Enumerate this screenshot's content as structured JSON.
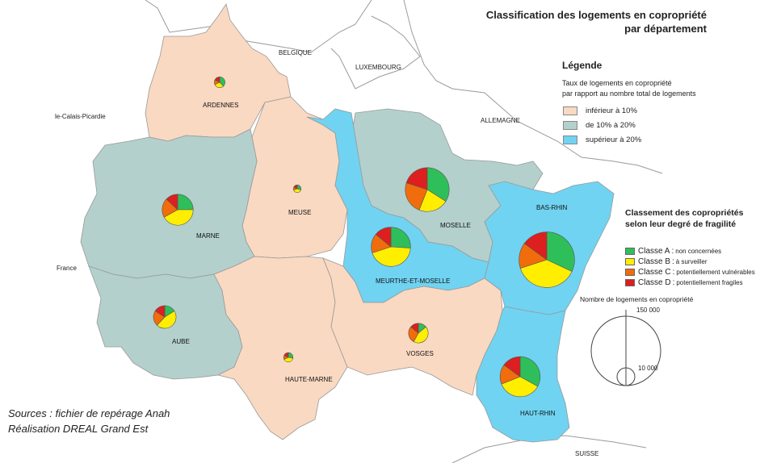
{
  "title": {
    "line1": "Classification des logements en copropriété",
    "line2": "par département"
  },
  "legend": {
    "title": "Légende",
    "subtitle_line1": "Taux de logements en copropriété",
    "subtitle_line2": "par rapport au nombre total de logements",
    "classes": [
      {
        "label": "inférieur à 10%",
        "color": "#f9d9c2"
      },
      {
        "label": "de 10% à 20%",
        "color": "#b3d0cc"
      },
      {
        "label": "supérieur à 20%",
        "color": "#70d3f1"
      }
    ]
  },
  "fragility": {
    "title_line1": "Classement des copropriétés",
    "title_line2": "selon leur degré de fragilité",
    "items": [
      {
        "cls": "Classe A",
        "desc": "non concernées",
        "color": "#2fbf5a"
      },
      {
        "cls": "Classe B",
        "desc": "à surveiller",
        "color": "#ffee00"
      },
      {
        "cls": "Classe C",
        "desc": "potentiellement vulnérables",
        "color": "#f06c0c"
      },
      {
        "cls": "Classe D",
        "desc": "potentiellement fragiles",
        "color": "#dd1f1f"
      }
    ]
  },
  "size_legend": {
    "title": "Nombre de logements en copropriété",
    "large": "150 000",
    "small": "10 000"
  },
  "neighbors": {
    "belgique": "BELGIQUE",
    "luxembourg": "LUXEMBOURG",
    "allemagne": "ALLEMAGNE",
    "nord": "le-Calais-Picardie",
    "france": "France",
    "suisse": "SUISSE"
  },
  "departments": [
    {
      "name": "ARDENNES",
      "rate_class": "inférieur à 10%"
    },
    {
      "name": "MARNE",
      "rate_class": "de 10% à 20%"
    },
    {
      "name": "MEUSE",
      "rate_class": "inférieur à 10%"
    },
    {
      "name": "AUBE",
      "rate_class": "de 10% à 20%"
    },
    {
      "name": "HAUTE-MARNE",
      "rate_class": "inférieur à 10%"
    },
    {
      "name": "MOSELLE",
      "rate_class": "de 10% à 20%"
    },
    {
      "name": "MEURTHE-ET-MOSELLE",
      "rate_class": "supérieur à 20%"
    },
    {
      "name": "VOSGES",
      "rate_class": "inférieur à 10%"
    },
    {
      "name": "BAS-RHIN",
      "rate_class": "supérieur à 20%"
    },
    {
      "name": "HAUT-RHIN",
      "rate_class": "supérieur à 20%"
    }
  ],
  "pies": [
    {
      "dept": "ARDENNES",
      "logements": 3600,
      "shares": [
        0.38,
        0.3,
        0.14,
        0.18
      ]
    },
    {
      "dept": "MARNE",
      "logements": 30000,
      "shares": [
        0.25,
        0.42,
        0.2,
        0.13
      ]
    },
    {
      "dept": "MEUSE",
      "logements": 1800,
      "shares": [
        0.3,
        0.4,
        0.12,
        0.18
      ]
    },
    {
      "dept": "AUBE",
      "logements": 16000,
      "shares": [
        0.16,
        0.46,
        0.22,
        0.16
      ]
    },
    {
      "dept": "HAUTE-MARNE",
      "logements": 2700,
      "shares": [
        0.28,
        0.4,
        0.14,
        0.18
      ]
    },
    {
      "dept": "MOSELLE",
      "logements": 60000,
      "shares": [
        0.34,
        0.22,
        0.24,
        0.2
      ]
    },
    {
      "dept": "MEURTHE-ET-MOSELLE",
      "logements": 48000,
      "shares": [
        0.26,
        0.44,
        0.16,
        0.14
      ]
    },
    {
      "dept": "VOSGES",
      "logements": 12000,
      "shares": [
        0.14,
        0.44,
        0.28,
        0.14
      ]
    },
    {
      "dept": "BAS-RHIN",
      "logements": 96000,
      "shares": [
        0.32,
        0.38,
        0.15,
        0.15
      ]
    },
    {
      "dept": "HAUT-RHIN",
      "logements": 50000,
      "shares": [
        0.33,
        0.36,
        0.16,
        0.15
      ]
    }
  ],
  "sources": {
    "line1": "Sources : fichier de repérage Anah",
    "line2": "Réalisation DREAL Grand Est"
  }
}
